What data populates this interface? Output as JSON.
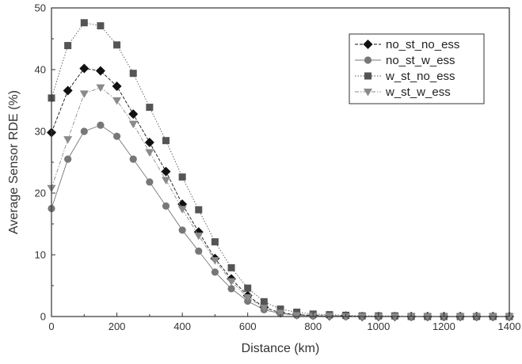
{
  "chart_data": {
    "type": "line",
    "title": "",
    "xlabel": "Distance (km)",
    "ylabel": "Average Sensor RDE (%)",
    "xlim": [
      0,
      1400
    ],
    "ylim": [
      0,
      50
    ],
    "xticks": [
      0,
      200,
      400,
      600,
      800,
      1000,
      1200,
      1400
    ],
    "yticks": [
      0,
      10,
      20,
      30,
      40,
      50
    ],
    "grid": false,
    "legend_position": "top-right",
    "x": [
      0,
      50,
      100,
      150,
      200,
      250,
      300,
      350,
      400,
      450,
      500,
      550,
      600,
      650,
      700,
      750,
      800,
      850,
      900,
      950,
      1000,
      1050,
      1100,
      1150,
      1200,
      1250,
      1300,
      1350,
      1400
    ],
    "series": [
      {
        "name": "no_st_no_ess",
        "marker": "diamond",
        "line_style": "dashed",
        "color": "#111111",
        "values": [
          29.8,
          36.6,
          40.2,
          39.8,
          37.3,
          32.8,
          28.2,
          23.5,
          18.2,
          13.7,
          9.4,
          6.1,
          3.4,
          1.5,
          0.6,
          0.3,
          0.2,
          0.1,
          0.1,
          0,
          0,
          0,
          0,
          0,
          0,
          0,
          0,
          0,
          0
        ]
      },
      {
        "name": "no_st_w_ess",
        "marker": "circle",
        "line_style": "solid",
        "color": "#777777",
        "values": [
          17.5,
          25.5,
          30.0,
          31.0,
          29.2,
          25.5,
          21.8,
          17.9,
          14.0,
          10.6,
          7.2,
          4.5,
          2.5,
          1.1,
          0.5,
          0.2,
          0.1,
          0.1,
          0,
          0,
          0,
          0,
          0,
          0,
          0,
          0,
          0,
          0,
          0
        ]
      },
      {
        "name": "w_st_no_ess",
        "marker": "square",
        "line_style": "dotted",
        "color": "#555555",
        "values": [
          35.4,
          43.9,
          47.6,
          47.1,
          44.0,
          39.4,
          33.9,
          28.5,
          22.6,
          17.3,
          12.1,
          7.9,
          4.6,
          2.4,
          1.2,
          0.7,
          0.4,
          0.3,
          0.2,
          0.1,
          0.1,
          0.1,
          0,
          0,
          0,
          0,
          0,
          0,
          0
        ]
      },
      {
        "name": "w_st_w_ess",
        "marker": "triangle-down",
        "line_style": "dash-dot",
        "color": "#8a8a8a",
        "values": [
          20.8,
          28.7,
          36.1,
          37.1,
          35.0,
          31.2,
          26.6,
          22.1,
          17.4,
          13.1,
          9.1,
          5.7,
          3.1,
          1.4,
          0.6,
          0.2,
          0.1,
          0.1,
          0,
          0,
          0,
          0,
          0,
          0,
          0,
          0,
          0,
          0,
          0
        ]
      }
    ]
  }
}
